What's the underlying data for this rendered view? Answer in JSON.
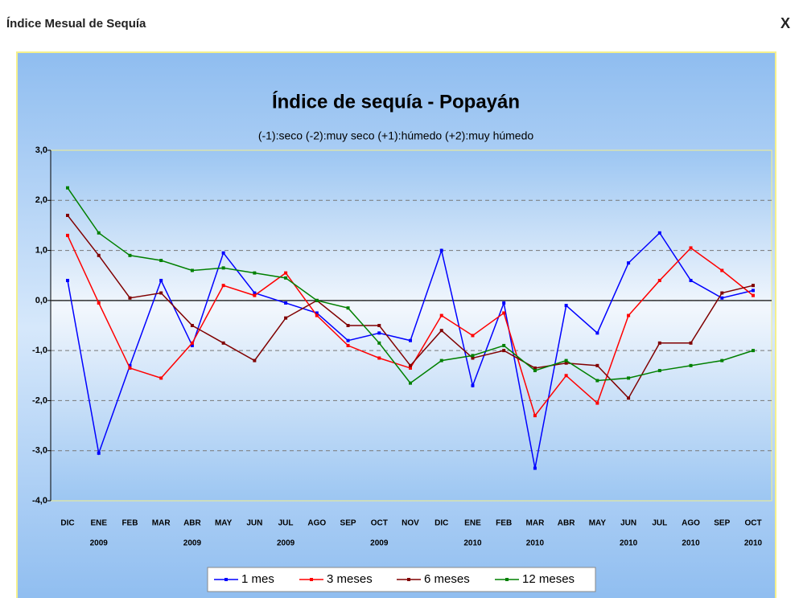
{
  "header": {
    "title": "Índice Mesual de Sequía",
    "close": "X"
  },
  "chart_data": {
    "type": "line",
    "title": "Índice de sequía - Popayán",
    "subtitle": "(-1):seco  (-2):muy seco  (+1):húmedo  (+2):muy húmedo",
    "categories": [
      "DIC",
      "ENE",
      "FEB",
      "MAR",
      "ABR",
      "MAY",
      "JUN",
      "JUL",
      "AGO",
      "SEP",
      "OCT",
      "NOV",
      "DIC",
      "ENE",
      "FEB",
      "MAR",
      "ABR",
      "MAY",
      "JUN",
      "JUL",
      "AGO",
      "SEP",
      "OCT"
    ],
    "x_sublabels": [
      null,
      "2009",
      null,
      null,
      "2009",
      null,
      null,
      "2009",
      null,
      null,
      "2009",
      null,
      null,
      "2010",
      null,
      "2010",
      null,
      null,
      "2010",
      null,
      "2010",
      null,
      "2010"
    ],
    "ylim": [
      -4,
      3
    ],
    "yticks": [
      {
        "value": 3,
        "label": "3,0"
      },
      {
        "value": 2,
        "label": "2,0"
      },
      {
        "value": 1,
        "label": "1,0"
      },
      {
        "value": 0,
        "label": "0,0"
      },
      {
        "value": -1,
        "label": "-1,0"
      },
      {
        "value": -2,
        "label": "-2,0"
      },
      {
        "value": -3,
        "label": "-3,0"
      },
      {
        "value": -4,
        "label": "-4,0"
      }
    ],
    "grid": true,
    "legend": "bottom",
    "series": [
      {
        "name": "1 mes",
        "color": "#0000ff",
        "values": [
          0.4,
          -3.05,
          -1.3,
          0.4,
          -0.9,
          0.95,
          0.15,
          -0.05,
          -0.25,
          -0.8,
          -0.65,
          -0.8,
          1.0,
          -1.7,
          -0.05,
          -3.35,
          -0.1,
          -0.65,
          0.75,
          1.35,
          0.4,
          0.05,
          0.2
        ]
      },
      {
        "name": "3 meses",
        "color": "#ff0000",
        "values": [
          1.3,
          -0.05,
          -1.35,
          -1.55,
          -0.85,
          0.3,
          0.1,
          0.55,
          -0.3,
          -0.9,
          -1.15,
          -1.35,
          -0.3,
          -0.7,
          -0.25,
          -2.3,
          -1.5,
          -2.05,
          -0.3,
          0.4,
          1.05,
          0.6,
          0.1
        ]
      },
      {
        "name": "6 meses",
        "color": "#800000",
        "values": [
          1.7,
          0.9,
          0.05,
          0.15,
          -0.5,
          -0.85,
          -1.2,
          -0.35,
          0.0,
          -0.5,
          -0.5,
          -1.3,
          -0.6,
          -1.15,
          -1.0,
          -1.35,
          -1.25,
          -1.3,
          -1.95,
          -0.85,
          -0.85,
          0.15,
          0.3
        ]
      },
      {
        "name": "12 meses",
        "color": "#008000",
        "values": [
          2.25,
          1.35,
          0.9,
          0.8,
          0.6,
          0.65,
          0.55,
          0.45,
          0.0,
          -0.15,
          -0.85,
          -1.65,
          -1.2,
          -1.1,
          -0.9,
          -1.4,
          -1.2,
          -1.6,
          -1.55,
          -1.4,
          -1.3,
          -1.2,
          -1.0
        ]
      }
    ]
  }
}
